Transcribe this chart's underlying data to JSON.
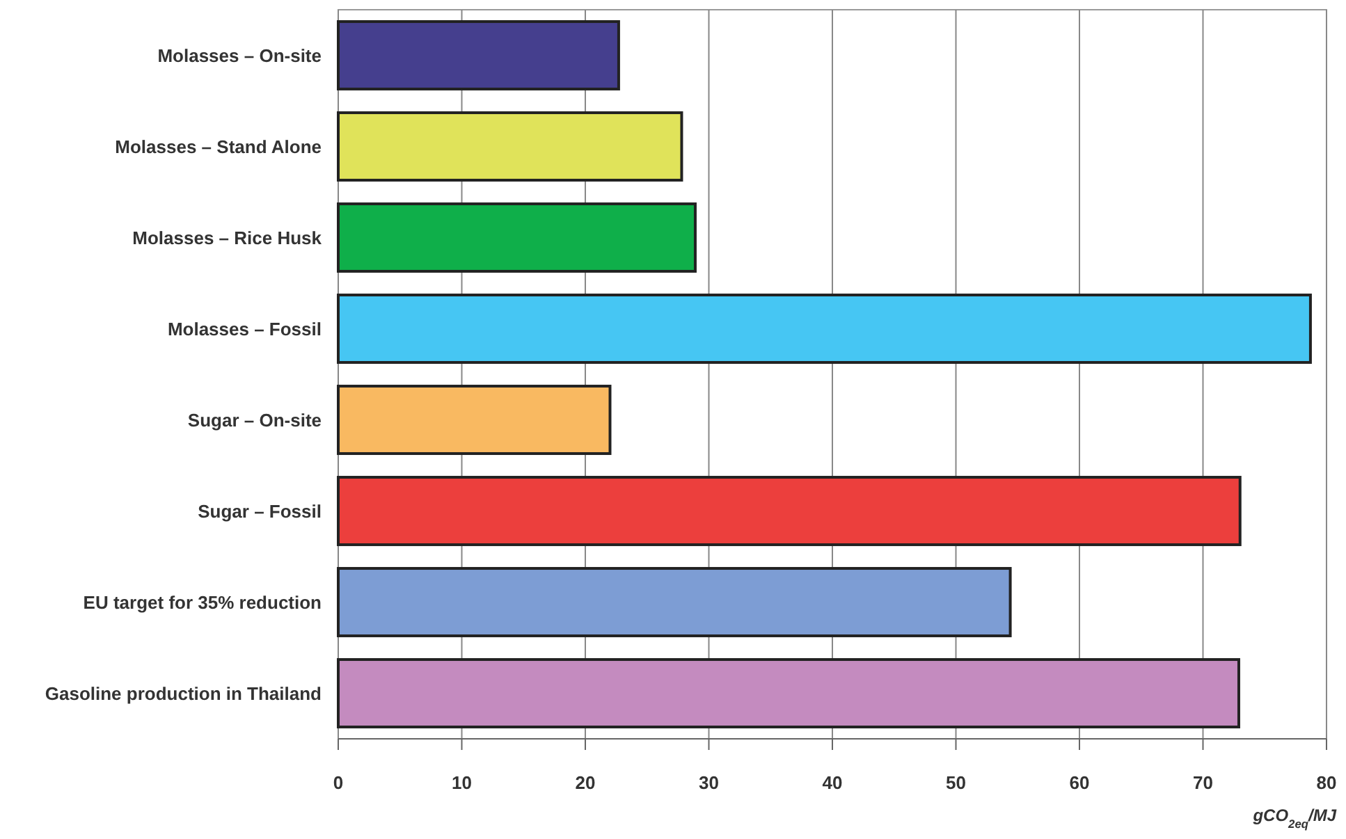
{
  "chart_data": {
    "type": "bar",
    "orientation": "horizontal",
    "xlabel": "gCO$_{2eq}$/MJ",
    "categories": [
      "Molasses – On-site",
      "Molasses – Stand Alone",
      "Molasses – Rice Husk",
      "Molasses – Fossil",
      "Sugar – On-site",
      "Sugar – Fossil",
      "EU target for 35% reduction",
      "Gasoline production in Thailand"
    ],
    "values": [
      22.7,
      27.8,
      28.9,
      78.7,
      22.0,
      73.0,
      54.4,
      72.9
    ],
    "colors": [
      "#453f8e",
      "#e0e35a",
      "#0faf4a",
      "#46c6f3",
      "#f9b961",
      "#ec3f3d",
      "#7d9dd4",
      "#c48bbf"
    ],
    "xlim": [
      0,
      80
    ],
    "xticks": [
      0,
      10,
      20,
      30,
      40,
      50,
      60,
      70,
      80
    ],
    "grid": "x"
  }
}
